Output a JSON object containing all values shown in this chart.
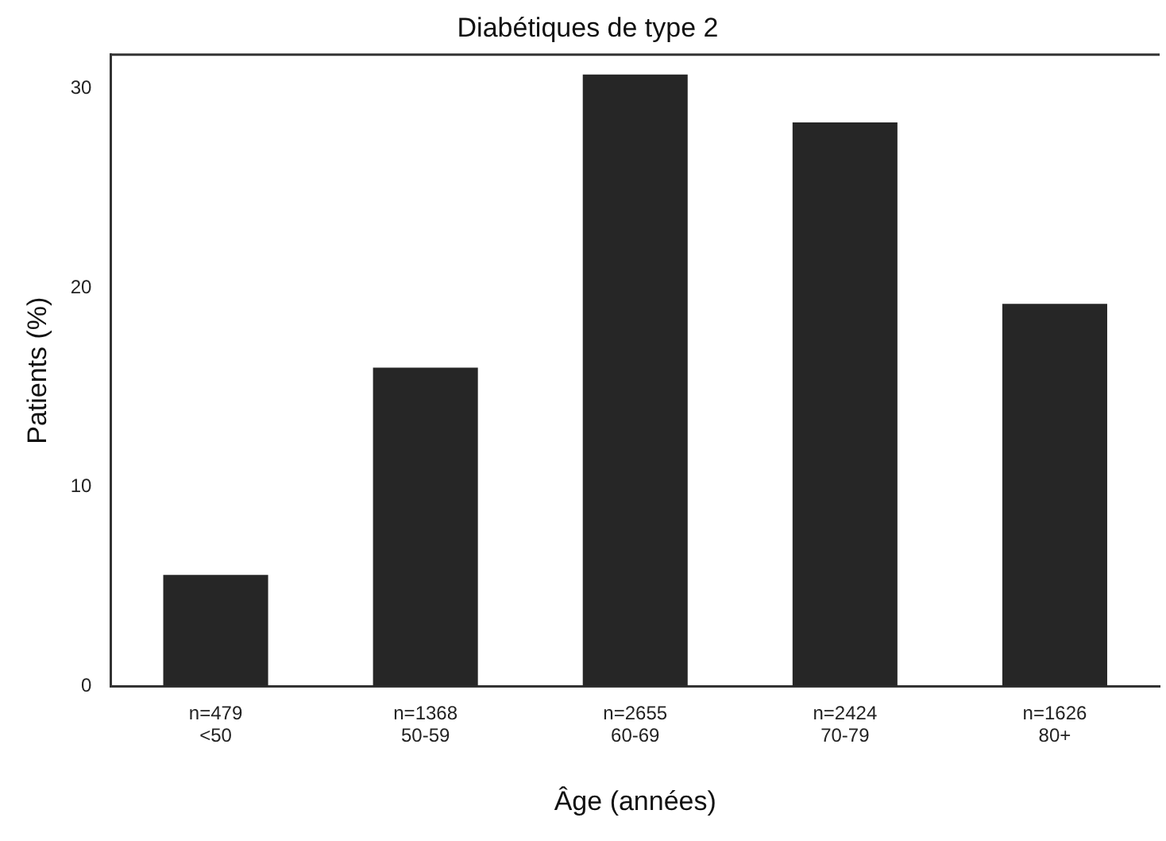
{
  "chart_data": {
    "type": "bar",
    "title": "Diabétiques de type 2",
    "xlabel": "Âge (années)",
    "ylabel": "Patients (%)",
    "categories": [
      "n=479\n<50",
      "n=1368\n50-59",
      "n=2655\n60-69",
      "n=2424\n70-79",
      "n=1626\n80+"
    ],
    "values": [
      5.6,
      16.0,
      30.7,
      28.3,
      19.2
    ],
    "color": "#262626",
    "ylim": [
      0,
      31.7
    ],
    "yticks": [
      0,
      10,
      20,
      30
    ],
    "grid": false,
    "legend": false
  }
}
